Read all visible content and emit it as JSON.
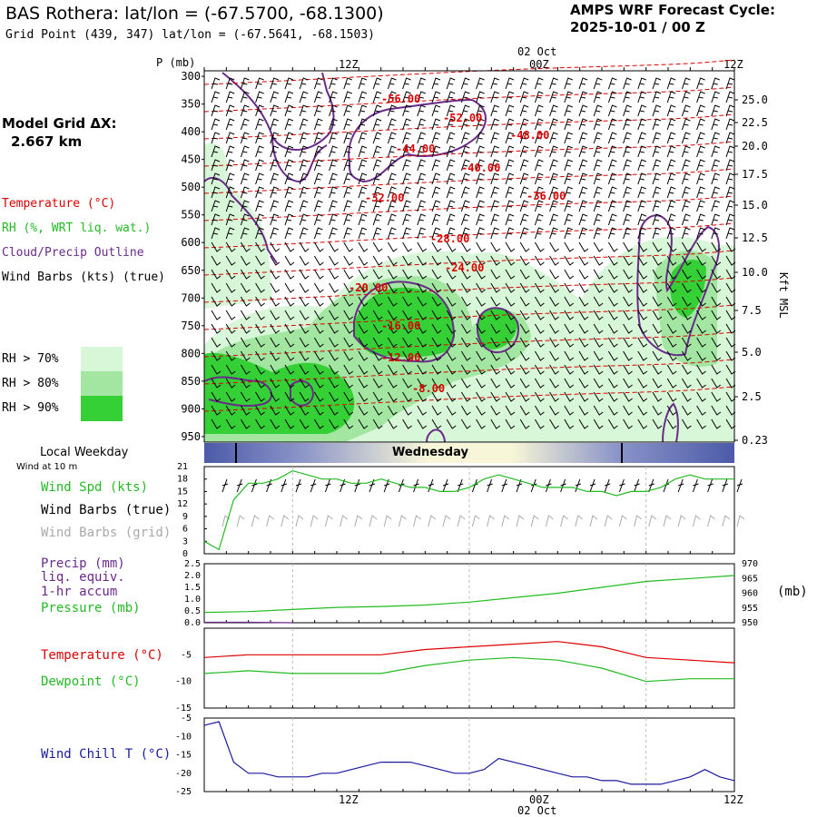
{
  "header": {
    "title": "BAS Rothera:  lat/lon = (-67.5700, -68.1300)",
    "grid_point": "Grid Point (439, 347) lat/lon = (-67.5641, -68.1503)",
    "forecast_label": "AMPS WRF Forecast Cycle:",
    "forecast_cycle": "2025-10-01 / 00  Z"
  },
  "model_grid": {
    "label": "Model Grid ΔX:",
    "value": "2.667 km"
  },
  "time_axis": {
    "top_labels": [
      "12Z",
      "00Z",
      "12Z"
    ],
    "date_label": "02 Oct",
    "weekday_title": "Local Weekday",
    "weekday_name": "Wednesday"
  },
  "colors": {
    "temperature": "#dd0000",
    "rh": "#22bb22",
    "cloud": "#6a2a8a",
    "wind_barb": "#000000",
    "wind_barb_grid": "#aaaaaa",
    "precip": "#6a2a8a",
    "dewpoint": "#22bb22",
    "windchill": "#1a1aa0",
    "rh70": "#d8f7d8",
    "rh80": "#a2e6a2",
    "rh90": "#35d035"
  },
  "cross_section": {
    "pressure_unit_label": "P (mb)",
    "height_unit_label": "Kft MSL",
    "legend": [
      {
        "label": "Temperature (°C)",
        "color": "#dd0000"
      },
      {
        "label": "RH (%, WRT liq. wat.)",
        "color": "#22bb22"
      },
      {
        "label": "Cloud/Precip Outline",
        "color": "#6a2a8a"
      },
      {
        "label": "Wind Barbs (kts) (true)",
        "color": "#000000"
      }
    ],
    "rh_legend": [
      "RH > 70%",
      "RH > 80%",
      "RH > 90%"
    ],
    "pressure_ticks": [
      "300",
      "350",
      "400",
      "450",
      "500",
      "550",
      "600",
      "650",
      "700",
      "750",
      "800",
      "850",
      "900",
      "950"
    ],
    "height_ticks": [
      "25.0",
      "22.5",
      "20.0",
      "17.5",
      "15.0",
      "12.5",
      "10.0",
      "7.5",
      "5.0",
      "2.5",
      "0.23"
    ],
    "temp_labels": [
      "-56.00",
      "-52.00",
      "-44.00",
      "-48.00",
      "-40.00",
      "-32.00",
      "-36.00",
      "-28.00",
      "-24.00",
      "-20.00",
      "-16.00",
      "-12.00",
      "-8.00"
    ]
  },
  "wind_panel": {
    "title": "Wind at 10 m",
    "labels": [
      "Wind Spd (kts)",
      "Wind Barbs (true)",
      "Wind Barbs (grid)"
    ],
    "ticks": [
      "21",
      "18",
      "15",
      "12",
      "9",
      "6",
      "3",
      "0"
    ]
  },
  "precip_panel": {
    "labels": [
      "Precip (mm)",
      "liq. equiv.",
      "1-hr accum",
      "Pressure (mb)"
    ],
    "left_ticks": [
      "2.5",
      "2.0",
      "1.5",
      "1.0",
      "0.5",
      "0.0"
    ],
    "right_ticks": [
      "970",
      "965",
      "960",
      "955",
      "950"
    ],
    "right_unit": "(mb)"
  },
  "temp_panel": {
    "labels": [
      "Temperature (°C)",
      "Dewpoint (°C)"
    ],
    "ticks": [
      "-5",
      "-10",
      "-15"
    ]
  },
  "windchill_panel": {
    "label": "Wind Chill T (°C)",
    "ticks": [
      "-5",
      "-10",
      "-15",
      "-20",
      "-25"
    ]
  },
  "chart_data": [
    {
      "type": "line",
      "title": "Wind at 10 m",
      "x_hours": [
        0,
        2,
        4,
        6,
        8,
        10,
        12,
        14,
        16,
        18,
        20,
        22,
        24,
        26,
        28,
        30,
        32,
        34,
        36,
        38,
        40,
        42,
        44,
        46,
        48,
        50,
        52,
        54,
        56,
        58,
        60,
        62,
        64,
        66,
        68,
        70,
        72
      ],
      "series": [
        {
          "name": "Wind Spd (kts)",
          "values": [
            3,
            1,
            13,
            17,
            17,
            18,
            20,
            19,
            18,
            18,
            17,
            17,
            18,
            17,
            16,
            16,
            15,
            15,
            16,
            18,
            19,
            18,
            17,
            16,
            16,
            16,
            15,
            15,
            14,
            15,
            15,
            16,
            18,
            19,
            18,
            18,
            18
          ]
        }
      ],
      "ylim": [
        0,
        21
      ]
    },
    {
      "type": "line",
      "title": "Precip / Pressure",
      "x_hours": [
        0,
        6,
        12,
        18,
        24,
        30,
        36,
        42,
        48,
        54,
        60,
        66,
        72
      ],
      "series": [
        {
          "name": "Precip (mm)",
          "values": [
            0.02,
            0.02,
            0.0,
            0,
            0,
            0,
            0,
            0,
            0,
            0,
            0,
            0,
            0
          ]
        },
        {
          "name": "Pressure (mb)",
          "values": [
            953.5,
            953.8,
            954.5,
            955.2,
            955.5,
            956,
            957,
            958.5,
            960,
            962,
            964,
            965,
            966
          ]
        }
      ],
      "ylim": [
        0,
        2.5
      ],
      "y2lim": [
        950,
        970
      ]
    },
    {
      "type": "line",
      "title": "Temperature / Dewpoint",
      "x_hours": [
        0,
        6,
        12,
        18,
        24,
        30,
        36,
        42,
        48,
        54,
        60,
        66,
        72
      ],
      "series": [
        {
          "name": "Temperature (°C)",
          "values": [
            -5.5,
            -5,
            -5,
            -5,
            -5,
            -4,
            -3.5,
            -3,
            -2.5,
            -3.5,
            -5.5,
            -6,
            -6.5
          ]
        },
        {
          "name": "Dewpoint (°C)",
          "values": [
            -8.5,
            -8,
            -8.5,
            -8.5,
            -8.5,
            -7,
            -6,
            -5.5,
            -6,
            -7.5,
            -10,
            -9.5,
            -9.5
          ]
        }
      ],
      "ylim": [
        -15,
        0
      ]
    },
    {
      "type": "line",
      "title": "Wind Chill T",
      "x_hours": [
        0,
        2,
        4,
        6,
        8,
        10,
        12,
        14,
        16,
        18,
        20,
        22,
        24,
        26,
        28,
        30,
        32,
        34,
        36,
        38,
        40,
        42,
        44,
        46,
        48,
        50,
        52,
        54,
        56,
        58,
        60,
        62,
        64,
        66,
        68,
        70,
        72
      ],
      "series": [
        {
          "name": "Wind Chill T (°C)",
          "values": [
            -7,
            -6,
            -17,
            -20,
            -20,
            -21,
            -21,
            -21,
            -20,
            -20,
            -19,
            -18,
            -17,
            -17,
            -17,
            -18,
            -19,
            -20,
            -20,
            -19,
            -16,
            -17,
            -18,
            -19,
            -20,
            -21,
            -21,
            -22,
            -22,
            -23,
            -23,
            -23,
            -22,
            -21,
            -19,
            -21,
            -22
          ]
        }
      ],
      "ylim": [
        -25,
        -5
      ]
    }
  ]
}
